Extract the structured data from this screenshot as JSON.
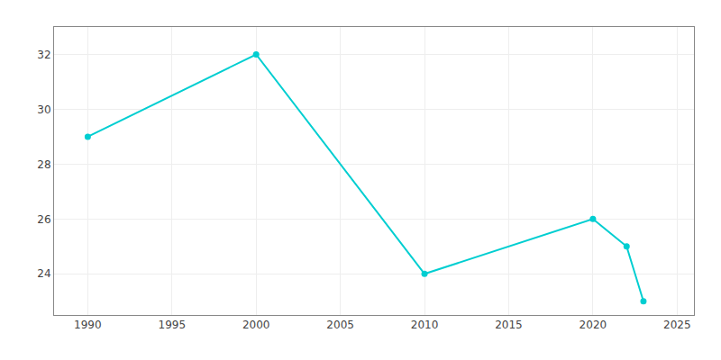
{
  "chart_data": {
    "type": "line",
    "x": [
      1990,
      2000,
      2010,
      2020,
      2022,
      2023
    ],
    "values": [
      29,
      32,
      24,
      26,
      25,
      23
    ],
    "color": "#00CED1",
    "marker": "circle",
    "xlim": [
      1988,
      2026
    ],
    "xticks": [
      1990,
      1995,
      2000,
      2005,
      2010,
      2015,
      2020,
      2025
    ],
    "ylim": [
      22.5,
      33
    ],
    "yticks": [
      24,
      26,
      28,
      30,
      32
    ],
    "grid": true
  }
}
